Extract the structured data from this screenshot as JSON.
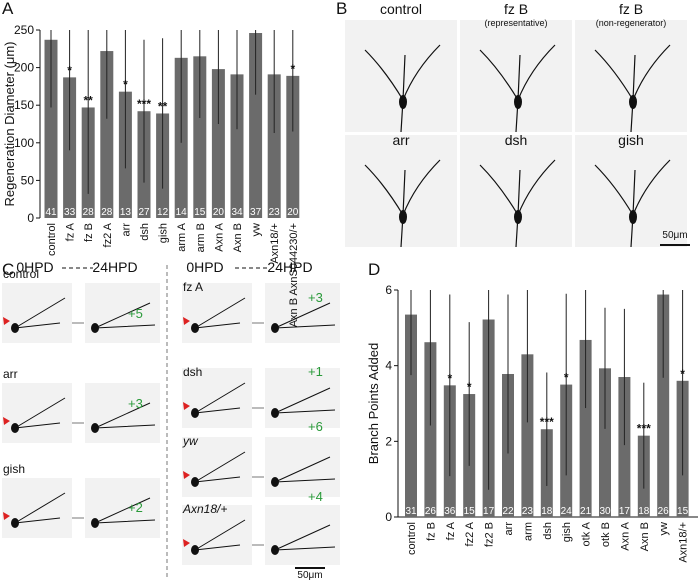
{
  "labels": {
    "a": "A",
    "b": "B",
    "c": "C",
    "d": "D"
  },
  "panel_b": {
    "images": [
      {
        "title": "control"
      },
      {
        "title": "fz B",
        "subtitle": "(representative)"
      },
      {
        "title": "fz B",
        "subtitle": "(non-regenerator)"
      },
      {
        "title": "arr"
      },
      {
        "title": "dsh"
      },
      {
        "title": "gish"
      }
    ],
    "scale": "50μm"
  },
  "panel_c": {
    "headers": [
      "0HPD",
      "24HPD",
      "0HPD",
      "24HPD"
    ],
    "rows": [
      {
        "label": "control",
        "added": "+5"
      },
      {
        "label": "arr",
        "added": "+3"
      },
      {
        "label": "gish",
        "added": "+2"
      },
      {
        "label": "fz A",
        "added": "+3"
      },
      {
        "label": "dsh",
        "added": "+1"
      },
      {
        "label": "yw",
        "added": "+6"
      },
      {
        "label": "Axn18/+",
        "added": "+4"
      }
    ],
    "scale": "50μm"
  },
  "chart_data": [
    {
      "type": "bar",
      "ylabel": "Regeneration Diameter (μm)",
      "color": "#6b6b6b",
      "categories": [
        "control",
        "fz A",
        "fz B",
        "fz2 A",
        "arr",
        "dsh",
        "gish",
        "arm A",
        "arm B",
        "Axn A",
        "Axn B",
        "yw",
        "Axn18/+",
        "Axn B AxnS044230/+"
      ],
      "values": [
        237,
        187,
        147,
        222,
        168,
        142,
        139,
        213,
        215,
        198,
        191,
        246,
        191,
        189
      ],
      "errors": [
        90,
        97,
        115,
        90,
        102,
        95,
        100,
        113,
        82,
        73,
        73,
        82,
        78,
        74
      ],
      "n": [
        "41",
        "33",
        "28",
        "28",
        "13",
        "27",
        "12",
        "14",
        "15",
        "20",
        "34",
        "37",
        "23",
        "20"
      ],
      "stars": [
        null,
        "*",
        "**",
        null,
        "*",
        "***",
        "**",
        null,
        null,
        null,
        null,
        null,
        null,
        "*"
      ],
      "ylim": [
        0,
        250
      ],
      "yticks": [
        0,
        50,
        100,
        150,
        200,
        250
      ]
    },
    {
      "type": "bar",
      "ylabel": "Branch Points Added",
      "color": "#6b6b6b",
      "categories": [
        "control",
        "fz B",
        "fz A",
        "fz2 A",
        "fz2 B",
        "arr",
        "arm",
        "dsh",
        "gish",
        "otk A",
        "otk B",
        "Axn A",
        "Axn B",
        "yw",
        "Axn18/+"
      ],
      "values": [
        5.35,
        4.62,
        3.48,
        3.25,
        5.22,
        3.78,
        4.3,
        2.32,
        3.5,
        4.68,
        3.93,
        3.7,
        2.15,
        5.88,
        3.6
      ],
      "errors": [
        1.6,
        2.2,
        2.4,
        1.9,
        4.5,
        2.1,
        1.8,
        1.5,
        2.4,
        1.8,
        1.6,
        1.8,
        1.4,
        2.2,
        2.5
      ],
      "n": [
        "31",
        "26",
        "36",
        "15",
        "17",
        "22",
        "23",
        "18",
        "24",
        "21",
        "30",
        "17",
        "18",
        "26",
        "15"
      ],
      "stars": [
        null,
        null,
        "*",
        "*",
        null,
        null,
        null,
        "***",
        "*",
        null,
        null,
        null,
        "***",
        null,
        "*"
      ],
      "ylim": [
        0,
        6
      ],
      "yticks": [
        0,
        2,
        4,
        6
      ]
    }
  ]
}
